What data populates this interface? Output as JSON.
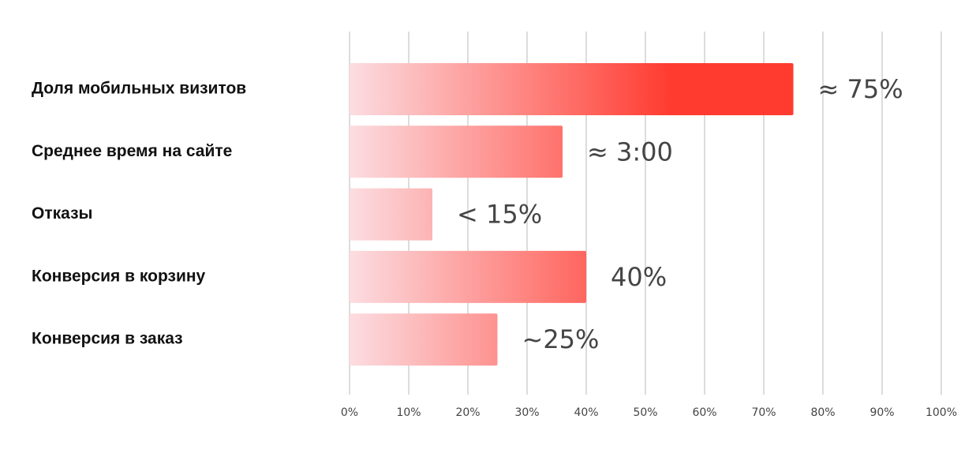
{
  "chart_data": {
    "type": "bar",
    "orientation": "horizontal",
    "categories": [
      "Доля мобильных визитов",
      "Среднее время на сайте",
      "Отказы",
      "Конверсия в корзину",
      "Конверсия в заказ"
    ],
    "values": [
      75,
      36,
      14,
      40,
      25
    ],
    "value_labels": [
      "≈ 75%",
      "≈ 3:00",
      "< 15%",
      "40%",
      "~25%"
    ],
    "color": "#ff3b30",
    "xlim": [
      0,
      100
    ],
    "xticks": [
      {
        "value": 0,
        "label": "0%"
      },
      {
        "value": 10,
        "label": "10%"
      },
      {
        "value": 20,
        "label": "20%"
      },
      {
        "value": 30,
        "label": "30%"
      },
      {
        "value": 40,
        "label": "40%"
      },
      {
        "value": 50,
        "label": "50%"
      },
      {
        "value": 60,
        "label": "60%"
      },
      {
        "value": 70,
        "label": "70%"
      },
      {
        "value": 80,
        "label": "80%"
      },
      {
        "value": 90,
        "label": "90%"
      },
      {
        "value": 100,
        "label": "100%"
      }
    ],
    "grid": true
  }
}
